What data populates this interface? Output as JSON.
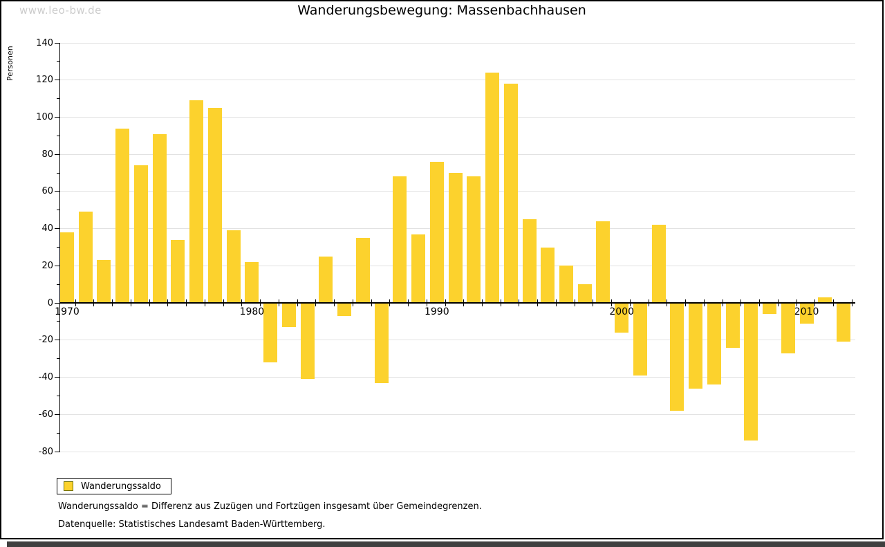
{
  "watermark": "www.leo-bw.de",
  "title": "Wanderungsbewegung: Massenbachhausen",
  "ylabel": "Personen",
  "legend": {
    "label": "Wanderungssaldo"
  },
  "footnotes": [
    "Wanderungssaldo = Differenz aus Zuzügen und Fortzügen insgesamt über Gemeindegrenzen.",
    "Datenquelle: Statistisches Landesamt Baden-Württemberg."
  ],
  "colors": {
    "bar": "#fcd22d",
    "grid": "#e2e2e2",
    "axis": "#000000",
    "watermark": "#cccccc",
    "shadow": "#3f3f3f",
    "legend_swatch_border": "#6f6f00"
  },
  "chart_data": {
    "type": "bar",
    "title": "Wanderungsbewegung: Massenbachhausen",
    "ylabel": "Personen",
    "series_name": "Wanderungssaldo",
    "years": [
      1970,
      1971,
      1972,
      1973,
      1974,
      1975,
      1976,
      1977,
      1978,
      1979,
      1980,
      1981,
      1982,
      1983,
      1984,
      1985,
      1986,
      1987,
      1988,
      1989,
      1990,
      1991,
      1992,
      1993,
      1994,
      1995,
      1996,
      1997,
      1998,
      1999,
      2000,
      2001,
      2002,
      2003,
      2004,
      2005,
      2006,
      2007,
      2008,
      2009,
      2010,
      2011,
      2012
    ],
    "values": [
      38,
      49,
      23,
      94,
      74,
      91,
      34,
      109,
      105,
      39,
      22,
      -32,
      -13,
      -41,
      25,
      -7,
      35,
      -43,
      68,
      37,
      76,
      70,
      68,
      124,
      118,
      45,
      30,
      20,
      10,
      44,
      -16,
      -39,
      42,
      -58,
      -46,
      -44,
      -24,
      -74,
      -6,
      -27,
      -11,
      3,
      -21
    ],
    "ylim": [
      -80,
      140
    ],
    "ytick_step": 20,
    "ytick_minor_step": 10,
    "xticklabels": [
      "1970",
      "1980",
      "1990",
      "2000",
      "2010"
    ],
    "grid": true,
    "legend_position": "bottom-left"
  }
}
